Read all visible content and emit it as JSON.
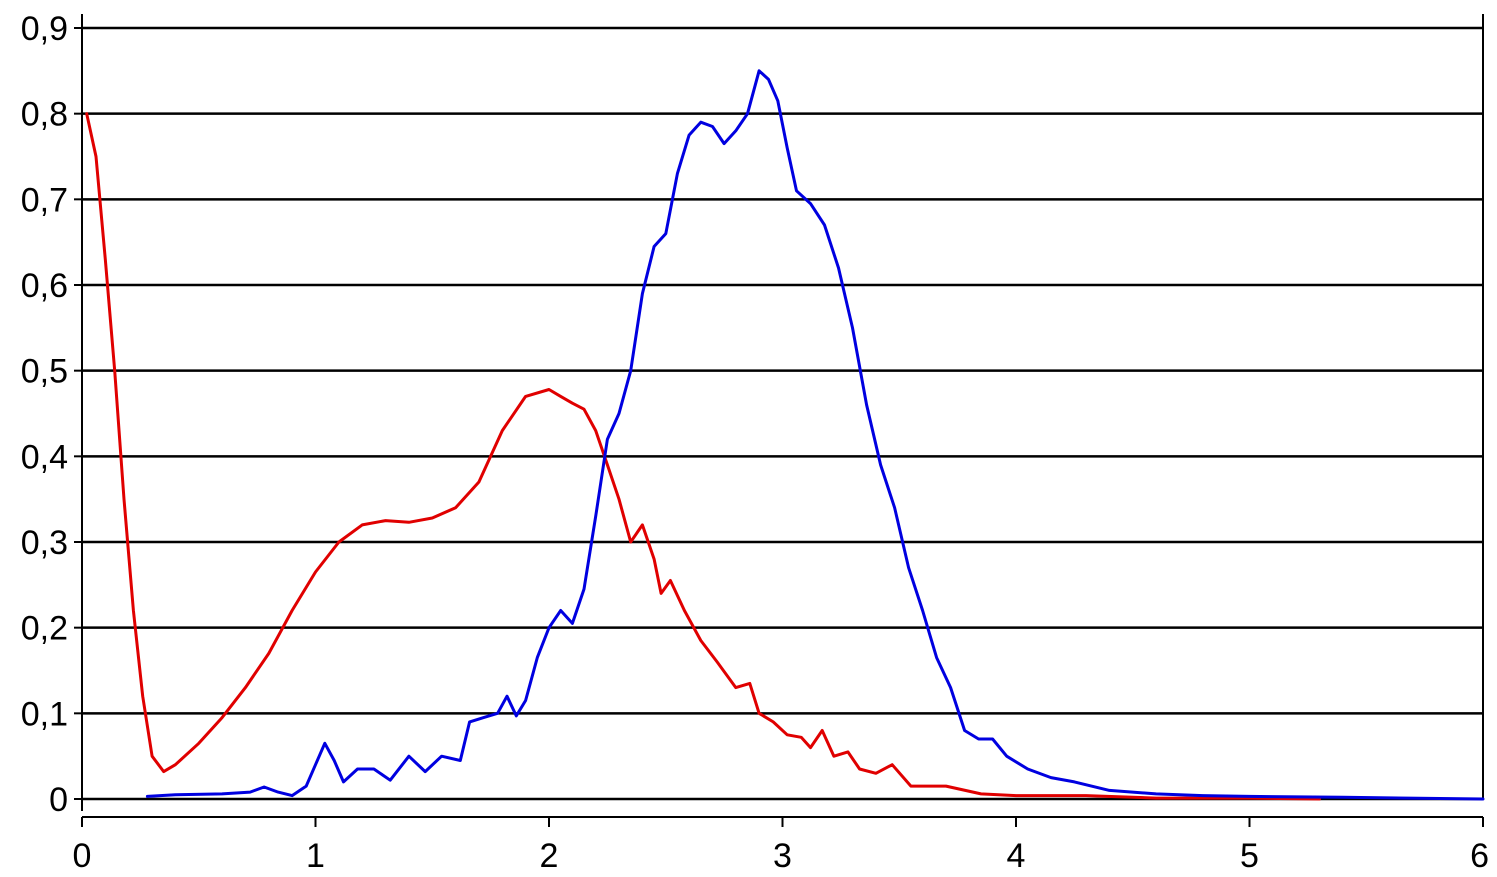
{
  "colors": {
    "background": "#ffffff",
    "axis": "#000000",
    "grid": "#000000",
    "series_red": "#e00000",
    "series_blue": "#0000e0"
  },
  "chart_data": {
    "type": "line",
    "title": "",
    "xlabel": "",
    "ylabel": "",
    "xlim": [
      0,
      6
    ],
    "ylim": [
      0,
      0.9
    ],
    "grid": "horizontal",
    "legend": "none",
    "x_ticks": [
      {
        "value": 0,
        "label": "0"
      },
      {
        "value": 1,
        "label": "1"
      },
      {
        "value": 2,
        "label": "2"
      },
      {
        "value": 3,
        "label": "3"
      },
      {
        "value": 4,
        "label": "4"
      },
      {
        "value": 5,
        "label": "5"
      },
      {
        "value": 6,
        "label": "6"
      }
    ],
    "y_ticks": [
      {
        "value": 0,
        "label": "0"
      },
      {
        "value": 0.1,
        "label": "0,1"
      },
      {
        "value": 0.2,
        "label": "0,2"
      },
      {
        "value": 0.3,
        "label": "0,3"
      },
      {
        "value": 0.4,
        "label": "0,4"
      },
      {
        "value": 0.5,
        "label": "0,5"
      },
      {
        "value": 0.6,
        "label": "0,6"
      },
      {
        "value": 0.7,
        "label": "0,7"
      },
      {
        "value": 0.8,
        "label": "0,8"
      },
      {
        "value": 0.9,
        "label": "0,9"
      }
    ],
    "series": [
      {
        "color": "#e00000",
        "points": [
          [
            0.02,
            0.8
          ],
          [
            0.06,
            0.75
          ],
          [
            0.1,
            0.63
          ],
          [
            0.14,
            0.5
          ],
          [
            0.18,
            0.35
          ],
          [
            0.22,
            0.22
          ],
          [
            0.26,
            0.12
          ],
          [
            0.3,
            0.05
          ],
          [
            0.35,
            0.032
          ],
          [
            0.4,
            0.04
          ],
          [
            0.5,
            0.065
          ],
          [
            0.6,
            0.095
          ],
          [
            0.7,
            0.13
          ],
          [
            0.8,
            0.17
          ],
          [
            0.9,
            0.22
          ],
          [
            1.0,
            0.265
          ],
          [
            1.1,
            0.3
          ],
          [
            1.2,
            0.32
          ],
          [
            1.3,
            0.325
          ],
          [
            1.4,
            0.323
          ],
          [
            1.5,
            0.328
          ],
          [
            1.6,
            0.34
          ],
          [
            1.7,
            0.37
          ],
          [
            1.8,
            0.43
          ],
          [
            1.9,
            0.47
          ],
          [
            2.0,
            0.478
          ],
          [
            2.05,
            0.47
          ],
          [
            2.1,
            0.462
          ],
          [
            2.15,
            0.455
          ],
          [
            2.2,
            0.43
          ],
          [
            2.25,
            0.39
          ],
          [
            2.3,
            0.35
          ],
          [
            2.35,
            0.3
          ],
          [
            2.4,
            0.32
          ],
          [
            2.45,
            0.28
          ],
          [
            2.48,
            0.24
          ],
          [
            2.52,
            0.255
          ],
          [
            2.58,
            0.22
          ],
          [
            2.65,
            0.185
          ],
          [
            2.72,
            0.16
          ],
          [
            2.8,
            0.13
          ],
          [
            2.86,
            0.135
          ],
          [
            2.9,
            0.1
          ],
          [
            2.96,
            0.09
          ],
          [
            3.02,
            0.075
          ],
          [
            3.08,
            0.072
          ],
          [
            3.12,
            0.06
          ],
          [
            3.17,
            0.08
          ],
          [
            3.22,
            0.05
          ],
          [
            3.28,
            0.055
          ],
          [
            3.33,
            0.035
          ],
          [
            3.4,
            0.03
          ],
          [
            3.47,
            0.04
          ],
          [
            3.55,
            0.015
          ],
          [
            3.7,
            0.015
          ],
          [
            3.85,
            0.006
          ],
          [
            4.0,
            0.004
          ],
          [
            4.3,
            0.004
          ],
          [
            4.6,
            0.001
          ],
          [
            5.0,
            0.001
          ],
          [
            5.3,
            0.0
          ]
        ]
      },
      {
        "color": "#0000e0",
        "points": [
          [
            0.28,
            0.003
          ],
          [
            0.4,
            0.005
          ],
          [
            0.6,
            0.006
          ],
          [
            0.72,
            0.008
          ],
          [
            0.78,
            0.014
          ],
          [
            0.84,
            0.008
          ],
          [
            0.9,
            0.004
          ],
          [
            0.96,
            0.015
          ],
          [
            1.0,
            0.04
          ],
          [
            1.04,
            0.065
          ],
          [
            1.08,
            0.045
          ],
          [
            1.12,
            0.02
          ],
          [
            1.18,
            0.035
          ],
          [
            1.25,
            0.035
          ],
          [
            1.32,
            0.022
          ],
          [
            1.4,
            0.05
          ],
          [
            1.47,
            0.032
          ],
          [
            1.54,
            0.05
          ],
          [
            1.62,
            0.045
          ],
          [
            1.66,
            0.09
          ],
          [
            1.72,
            0.095
          ],
          [
            1.78,
            0.1
          ],
          [
            1.82,
            0.12
          ],
          [
            1.86,
            0.097
          ],
          [
            1.9,
            0.115
          ],
          [
            1.95,
            0.165
          ],
          [
            2.0,
            0.2
          ],
          [
            2.05,
            0.22
          ],
          [
            2.1,
            0.205
          ],
          [
            2.15,
            0.245
          ],
          [
            2.2,
            0.33
          ],
          [
            2.25,
            0.42
          ],
          [
            2.3,
            0.45
          ],
          [
            2.35,
            0.5
          ],
          [
            2.4,
            0.59
          ],
          [
            2.45,
            0.645
          ],
          [
            2.5,
            0.66
          ],
          [
            2.55,
            0.73
          ],
          [
            2.6,
            0.775
          ],
          [
            2.65,
            0.79
          ],
          [
            2.7,
            0.785
          ],
          [
            2.75,
            0.765
          ],
          [
            2.8,
            0.78
          ],
          [
            2.85,
            0.8
          ],
          [
            2.9,
            0.85
          ],
          [
            2.94,
            0.84
          ],
          [
            2.98,
            0.815
          ],
          [
            3.02,
            0.76
          ],
          [
            3.06,
            0.71
          ],
          [
            3.12,
            0.695
          ],
          [
            3.18,
            0.67
          ],
          [
            3.24,
            0.62
          ],
          [
            3.3,
            0.55
          ],
          [
            3.36,
            0.46
          ],
          [
            3.42,
            0.39
          ],
          [
            3.48,
            0.34
          ],
          [
            3.54,
            0.27
          ],
          [
            3.6,
            0.22
          ],
          [
            3.66,
            0.165
          ],
          [
            3.72,
            0.13
          ],
          [
            3.78,
            0.08
          ],
          [
            3.84,
            0.07
          ],
          [
            3.9,
            0.07
          ],
          [
            3.96,
            0.05
          ],
          [
            4.05,
            0.035
          ],
          [
            4.15,
            0.025
          ],
          [
            4.25,
            0.02
          ],
          [
            4.4,
            0.01
          ],
          [
            4.6,
            0.006
          ],
          [
            4.8,
            0.004
          ],
          [
            5.0,
            0.003
          ],
          [
            5.4,
            0.002
          ],
          [
            6.0,
            0.0
          ]
        ]
      }
    ]
  }
}
